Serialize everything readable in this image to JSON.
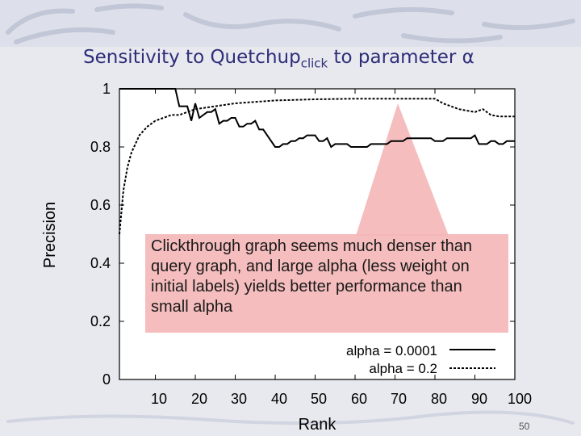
{
  "slide": {
    "title_prefix": "Sensitivity to Quetchup",
    "title_subscript": "click",
    "title_suffix": " to parameter α",
    "page_number": "50"
  },
  "callout": {
    "text": "Clickthrough graph seems much denser than query graph, and large alpha (less weight on initial labels) yields better performance than small alpha",
    "color": "#f4b6b6"
  },
  "chart_data": {
    "type": "line",
    "xlabel": "Rank",
    "ylabel": "Precision",
    "xlim": [
      1,
      100
    ],
    "ylim": [
      0,
      1
    ],
    "x_ticks": [
      "10",
      "20",
      "30",
      "40",
      "50",
      "60",
      "70",
      "80",
      "90",
      "100"
    ],
    "y_ticks": [
      "0",
      "0.2",
      "0.4",
      "0.6",
      "0.8",
      "1"
    ],
    "legend_position": "bottom-right",
    "series": [
      {
        "name": "alpha = 0.0001",
        "style": "solid",
        "x": [
          1,
          2,
          3,
          4,
          5,
          6,
          7,
          8,
          9,
          10,
          11,
          12,
          13,
          14,
          15,
          16,
          17,
          18,
          19,
          20,
          21,
          22,
          23,
          24,
          25,
          26,
          27,
          28,
          29,
          30,
          31,
          32,
          33,
          34,
          35,
          36,
          37,
          38,
          39,
          40,
          41,
          42,
          43,
          44,
          45,
          46,
          47,
          48,
          49,
          50,
          51,
          52,
          53,
          54,
          55,
          56,
          57,
          58,
          59,
          60,
          61,
          62,
          63,
          64,
          65,
          66,
          67,
          68,
          69,
          70,
          71,
          72,
          73,
          74,
          75,
          76,
          77,
          78,
          79,
          80,
          81,
          82,
          83,
          84,
          85,
          86,
          87,
          88,
          89,
          90,
          91,
          92,
          93,
          94,
          95,
          96,
          97,
          98,
          99,
          100
        ],
        "y": [
          1.0,
          1.0,
          1.0,
          1.0,
          1.0,
          1.0,
          1.0,
          1.0,
          1.0,
          1.0,
          1.0,
          1.0,
          1.0,
          1.0,
          1.0,
          0.94,
          0.94,
          0.94,
          0.89,
          0.95,
          0.9,
          0.91,
          0.92,
          0.92,
          0.93,
          0.88,
          0.89,
          0.89,
          0.9,
          0.9,
          0.87,
          0.87,
          0.88,
          0.88,
          0.89,
          0.86,
          0.86,
          0.84,
          0.82,
          0.8,
          0.8,
          0.81,
          0.81,
          0.82,
          0.82,
          0.83,
          0.83,
          0.84,
          0.84,
          0.84,
          0.82,
          0.82,
          0.83,
          0.8,
          0.81,
          0.81,
          0.81,
          0.81,
          0.8,
          0.8,
          0.8,
          0.8,
          0.8,
          0.81,
          0.81,
          0.81,
          0.81,
          0.81,
          0.82,
          0.82,
          0.82,
          0.82,
          0.83,
          0.83,
          0.83,
          0.83,
          0.83,
          0.83,
          0.83,
          0.82,
          0.82,
          0.82,
          0.83,
          0.83,
          0.83,
          0.83,
          0.83,
          0.83,
          0.83,
          0.84,
          0.81,
          0.81,
          0.81,
          0.82,
          0.82,
          0.81,
          0.81,
          0.82,
          0.82,
          0.82
        ]
      },
      {
        "name": "alpha = 0.2",
        "style": "dashed",
        "x": [
          1,
          2,
          3,
          4,
          5,
          6,
          8,
          10,
          12,
          14,
          16,
          18,
          20,
          25,
          30,
          35,
          40,
          45,
          50,
          55,
          60,
          65,
          70,
          75,
          80,
          82,
          84,
          86,
          88,
          90,
          92,
          94,
          96,
          98,
          100
        ],
        "y": [
          0.5,
          0.65,
          0.73,
          0.78,
          0.81,
          0.84,
          0.87,
          0.89,
          0.9,
          0.91,
          0.91,
          0.92,
          0.93,
          0.94,
          0.95,
          0.955,
          0.96,
          0.962,
          0.964,
          0.965,
          0.966,
          0.966,
          0.966,
          0.966,
          0.966,
          0.95,
          0.94,
          0.93,
          0.925,
          0.92,
          0.93,
          0.91,
          0.905,
          0.905,
          0.905
        ]
      }
    ]
  }
}
